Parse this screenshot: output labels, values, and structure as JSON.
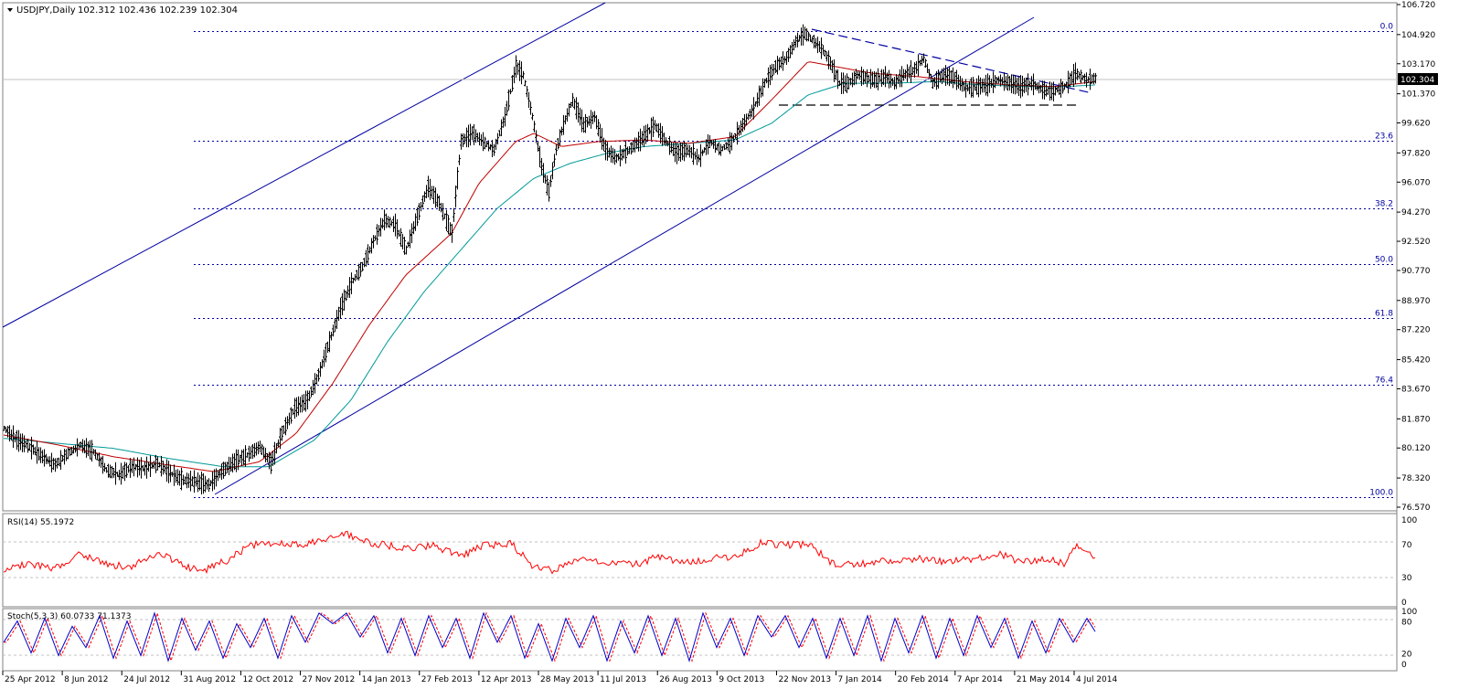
{
  "header": {
    "symbol": "USDJPY,Daily",
    "ohlc": "102.312 102.436 102.239 102.304"
  },
  "colors": {
    "background": "#ffffff",
    "candles": "#000000",
    "ma_fast": "#c00000",
    "ma_slow": "#009999",
    "channel": "#0000a0",
    "fib": "#0000a0",
    "rsi": "#ff0000",
    "stoch_main": "#0000cc",
    "stoch_signal": "#ff0000",
    "price_tag_bg": "#000000",
    "price_tag_fg": "#ffffff"
  },
  "price_axis": {
    "labels": [
      "106.720",
      "104.920",
      "103.170",
      "101.370",
      "99.620",
      "97.820",
      "96.070",
      "94.270",
      "92.520",
      "90.770",
      "88.970",
      "87.220",
      "85.420",
      "83.670",
      "81.870",
      "80.120",
      "78.320",
      "76.570"
    ],
    "current": "102.304"
  },
  "time_axis": {
    "labels": [
      "25 Apr 2012",
      "8 Jun 2012",
      "24 Jul 2012",
      "31 Aug 2012",
      "12 Oct 2012",
      "27 Nov 2012",
      "14 Jan 2013",
      "27 Feb 2013",
      "12 Apr 2013",
      "28 May 2013",
      "11 Jul 2013",
      "26 Aug 2013",
      "9 Oct 2013",
      "22 Nov 2013",
      "7 Jan 2014",
      "20 Feb 2014",
      "7 Apr 2014",
      "21 May 2014",
      "4 Jul 2014"
    ]
  },
  "fib_levels": [
    {
      "label": "0.0",
      "value": 105.15
    },
    {
      "label": "23.6",
      "value": 98.55
    },
    {
      "label": "38.2",
      "value": 94.5
    },
    {
      "label": "50.0",
      "value": 91.15
    },
    {
      "label": "61.8",
      "value": 87.9
    },
    {
      "label": "76.4",
      "value": 83.9
    },
    {
      "label": "100.0",
      "value": 77.15
    }
  ],
  "rsi_panel": {
    "title": "RSI(14) 55.1972",
    "scale_labels": [
      "100",
      "70",
      "30",
      "0"
    ]
  },
  "stoch_panel": {
    "title": "Stoch(5,3,3) 60.0733 71.1373",
    "scale_labels": [
      "100",
      "80",
      "20",
      "0"
    ]
  },
  "chart_data": {
    "type": "line",
    "title": "USDJPY,Daily",
    "ylim": [
      76.57,
      106.72
    ],
    "series": [
      {
        "name": "USDJPY",
        "anchors": [
          [
            0,
            81.3
          ],
          [
            14,
            80.6
          ],
          [
            28,
            80.2
          ],
          [
            42,
            79.6
          ],
          [
            56,
            79.1
          ],
          [
            70,
            79.8
          ],
          [
            84,
            80.3
          ],
          [
            98,
            79.9
          ],
          [
            112,
            78.8
          ],
          [
            126,
            78.5
          ],
          [
            140,
            79.0
          ],
          [
            154,
            78.9
          ],
          [
            168,
            79.2
          ],
          [
            182,
            78.6
          ],
          [
            196,
            78.2
          ],
          [
            210,
            78.1
          ],
          [
            224,
            77.9
          ],
          [
            238,
            78.7
          ],
          [
            252,
            79.3
          ],
          [
            266,
            79.7
          ],
          [
            280,
            80.2
          ],
          [
            292,
            79.2
          ],
          [
            304,
            81.0
          ],
          [
            318,
            82.5
          ],
          [
            332,
            83.0
          ],
          [
            344,
            84.5
          ],
          [
            356,
            86.5
          ],
          [
            368,
            88.5
          ],
          [
            380,
            90.0
          ],
          [
            392,
            91.0
          ],
          [
            404,
            92.5
          ],
          [
            416,
            93.8
          ],
          [
            428,
            93.5
          ],
          [
            440,
            92.0
          ],
          [
            452,
            94.0
          ],
          [
            464,
            95.8
          ],
          [
            476,
            94.8
          ],
          [
            490,
            93.0
          ],
          [
            500,
            98.5
          ],
          [
            512,
            99.0
          ],
          [
            524,
            98.5
          ],
          [
            536,
            98.0
          ],
          [
            548,
            100.0
          ],
          [
            560,
            103.0
          ],
          [
            568,
            102.5
          ],
          [
            578,
            100.0
          ],
          [
            588,
            97.0
          ],
          [
            596,
            95.5
          ],
          [
            604,
            98.0
          ],
          [
            612,
            99.5
          ],
          [
            622,
            101.0
          ],
          [
            634,
            99.5
          ],
          [
            646,
            100.0
          ],
          [
            658,
            98.0
          ],
          [
            670,
            97.5
          ],
          [
            684,
            98.0
          ],
          [
            698,
            98.7
          ],
          [
            712,
            99.5
          ],
          [
            724,
            98.5
          ],
          [
            736,
            97.8
          ],
          [
            748,
            98.0
          ],
          [
            760,
            97.5
          ],
          [
            772,
            98.5
          ],
          [
            784,
            98.0
          ],
          [
            796,
            98.5
          ],
          [
            808,
            99.5
          ],
          [
            820,
            100.5
          ],
          [
            832,
            102.0
          ],
          [
            844,
            103.0
          ],
          [
            856,
            103.5
          ],
          [
            866,
            104.5
          ],
          [
            876,
            105.0
          ],
          [
            886,
            104.5
          ],
          [
            896,
            104.0
          ],
          [
            906,
            103.0
          ],
          [
            914,
            102.0
          ],
          [
            924,
            102.0
          ],
          [
            934,
            102.5
          ],
          [
            944,
            102.3
          ],
          [
            954,
            102.2
          ],
          [
            964,
            102.4
          ],
          [
            974,
            102.0
          ],
          [
            984,
            102.5
          ],
          [
            996,
            102.8
          ],
          [
            1006,
            103.5
          ],
          [
            1016,
            102.0
          ],
          [
            1028,
            102.5
          ],
          [
            1040,
            102.3
          ],
          [
            1052,
            101.7
          ],
          [
            1064,
            101.8
          ],
          [
            1076,
            101.9
          ],
          [
            1088,
            102.2
          ],
          [
            1100,
            102.0
          ],
          [
            1112,
            101.8
          ],
          [
            1124,
            102.0
          ],
          [
            1136,
            101.6
          ],
          [
            1148,
            101.5
          ],
          [
            1160,
            101.8
          ],
          [
            1172,
            102.6
          ],
          [
            1184,
            102.2
          ],
          [
            1194,
            102.3
          ]
        ]
      },
      {
        "name": "MA fast",
        "anchors": [
          [
            0,
            80.9
          ],
          [
            60,
            80.3
          ],
          [
            120,
            79.6
          ],
          [
            180,
            79.1
          ],
          [
            230,
            78.7
          ],
          [
            280,
            79.3
          ],
          [
            320,
            81.0
          ],
          [
            360,
            84.0
          ],
          [
            400,
            87.5
          ],
          [
            440,
            90.5
          ],
          [
            490,
            93.0
          ],
          [
            520,
            96.0
          ],
          [
            560,
            98.5
          ],
          [
            580,
            99.0
          ],
          [
            610,
            98.2
          ],
          [
            650,
            98.5
          ],
          [
            700,
            98.6
          ],
          [
            750,
            98.4
          ],
          [
            800,
            98.8
          ],
          [
            840,
            101.0
          ],
          [
            880,
            103.3
          ],
          [
            910,
            103.0
          ],
          [
            950,
            102.6
          ],
          [
            1000,
            102.4
          ],
          [
            1050,
            102.1
          ],
          [
            1100,
            101.9
          ],
          [
            1150,
            101.8
          ],
          [
            1194,
            102.1
          ]
        ]
      },
      {
        "name": "MA slow",
        "anchors": [
          [
            0,
            80.7
          ],
          [
            60,
            80.4
          ],
          [
            120,
            80.1
          ],
          [
            180,
            79.5
          ],
          [
            240,
            79.0
          ],
          [
            290,
            79.0
          ],
          [
            340,
            80.6
          ],
          [
            380,
            83.0
          ],
          [
            420,
            86.5
          ],
          [
            460,
            89.5
          ],
          [
            500,
            92.0
          ],
          [
            540,
            94.5
          ],
          [
            580,
            96.3
          ],
          [
            620,
            97.2
          ],
          [
            660,
            97.8
          ],
          [
            700,
            98.2
          ],
          [
            750,
            98.4
          ],
          [
            800,
            98.6
          ],
          [
            840,
            99.6
          ],
          [
            880,
            101.3
          ],
          [
            920,
            102.0
          ],
          [
            970,
            102.0
          ],
          [
            1020,
            102.1
          ],
          [
            1070,
            101.9
          ],
          [
            1120,
            101.8
          ],
          [
            1160,
            101.8
          ],
          [
            1194,
            101.9
          ]
        ]
      },
      {
        "name": "RSI(14)",
        "anchors": [
          [
            0,
            40
          ],
          [
            30,
            45
          ],
          [
            55,
            40
          ],
          [
            85,
            58
          ],
          [
            115,
            44
          ],
          [
            140,
            42
          ],
          [
            170,
            60
          ],
          [
            200,
            42
          ],
          [
            220,
            38
          ],
          [
            245,
            50
          ],
          [
            270,
            68
          ],
          [
            300,
            72
          ],
          [
            330,
            69
          ],
          [
            350,
            74
          ],
          [
            375,
            82
          ],
          [
            405,
            70
          ],
          [
            440,
            65
          ],
          [
            470,
            68
          ],
          [
            500,
            55
          ],
          [
            525,
            68
          ],
          [
            555,
            70
          ],
          [
            580,
            42
          ],
          [
            600,
            38
          ],
          [
            630,
            52
          ],
          [
            660,
            47
          ],
          [
            690,
            44
          ],
          [
            715,
            54
          ],
          [
            740,
            46
          ],
          [
            770,
            52
          ],
          [
            800,
            54
          ],
          [
            830,
            72
          ],
          [
            855,
            68
          ],
          [
            880,
            70
          ],
          [
            910,
            44
          ],
          [
            940,
            46
          ],
          [
            970,
            50
          ],
          [
            1000,
            52
          ],
          [
            1030,
            48
          ],
          [
            1060,
            51
          ],
          [
            1090,
            58
          ],
          [
            1115,
            47
          ],
          [
            1140,
            52
          ],
          [
            1160,
            46
          ],
          [
            1175,
            68
          ],
          [
            1194,
            55.2
          ]
        ]
      },
      {
        "name": "Stoch main",
        "anchors": [
          [
            0,
            40
          ],
          [
            15,
            80
          ],
          [
            30,
            20
          ],
          [
            45,
            85
          ],
          [
            60,
            15
          ],
          [
            75,
            70
          ],
          [
            90,
            30
          ],
          [
            105,
            90
          ],
          [
            120,
            10
          ],
          [
            135,
            80
          ],
          [
            150,
            15
          ],
          [
            165,
            95
          ],
          [
            180,
            5
          ],
          [
            195,
            85
          ],
          [
            210,
            25
          ],
          [
            225,
            80
          ],
          [
            240,
            10
          ],
          [
            255,
            75
          ],
          [
            270,
            30
          ],
          [
            285,
            85
          ],
          [
            300,
            10
          ],
          [
            315,
            90
          ],
          [
            330,
            40
          ],
          [
            345,
            95
          ],
          [
            360,
            75
          ],
          [
            375,
            95
          ],
          [
            390,
            50
          ],
          [
            405,
            90
          ],
          [
            420,
            20
          ],
          [
            435,
            85
          ],
          [
            450,
            15
          ],
          [
            465,
            90
          ],
          [
            480,
            30
          ],
          [
            495,
            85
          ],
          [
            510,
            10
          ],
          [
            525,
            95
          ],
          [
            540,
            40
          ],
          [
            555,
            90
          ],
          [
            570,
            10
          ],
          [
            585,
            75
          ],
          [
            600,
            5
          ],
          [
            615,
            85
          ],
          [
            630,
            30
          ],
          [
            645,
            90
          ],
          [
            660,
            5
          ],
          [
            675,
            80
          ],
          [
            690,
            20
          ],
          [
            705,
            90
          ],
          [
            720,
            15
          ],
          [
            735,
            85
          ],
          [
            750,
            5
          ],
          [
            765,
            95
          ],
          [
            780,
            30
          ],
          [
            795,
            85
          ],
          [
            810,
            15
          ],
          [
            825,
            90
          ],
          [
            840,
            50
          ],
          [
            855,
            90
          ],
          [
            870,
            30
          ],
          [
            885,
            85
          ],
          [
            900,
            10
          ],
          [
            915,
            85
          ],
          [
            930,
            15
          ],
          [
            945,
            90
          ],
          [
            960,
            5
          ],
          [
            975,
            85
          ],
          [
            990,
            20
          ],
          [
            1005,
            90
          ],
          [
            1020,
            10
          ],
          [
            1035,
            85
          ],
          [
            1050,
            15
          ],
          [
            1065,
            90
          ],
          [
            1080,
            30
          ],
          [
            1095,
            85
          ],
          [
            1110,
            10
          ],
          [
            1125,
            80
          ],
          [
            1140,
            20
          ],
          [
            1155,
            85
          ],
          [
            1170,
            40
          ],
          [
            1185,
            85
          ],
          [
            1194,
            60.1
          ]
        ]
      }
    ]
  }
}
